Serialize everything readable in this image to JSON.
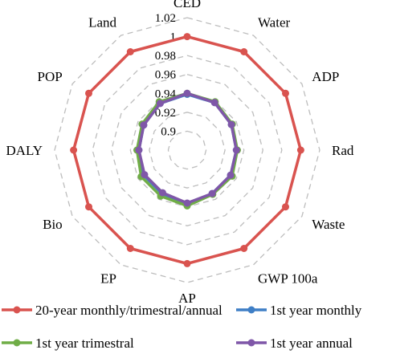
{
  "chart_data": {
    "type": "radar",
    "axes": [
      "CED",
      "Water",
      "ADP",
      "Rad",
      "Waste",
      "GWP 100a",
      "AP",
      "EP",
      "Bio",
      "DALY",
      "POP",
      "Land"
    ],
    "rlim": [
      0.88,
      1.02
    ],
    "ticks": [
      0.88,
      0.9,
      0.92,
      0.94,
      0.96,
      0.98,
      1,
      1.02
    ],
    "tick_labels": [
      "",
      "0.9",
      "0.92",
      "0.94",
      "0.96",
      "0.98",
      "1",
      "1.02"
    ],
    "grid": true,
    "legend_position": "bottom",
    "series": [
      {
        "name": "20-year monthly/trimestral/annual",
        "color": "#d9534f",
        "values": [
          1,
          1,
          1,
          1,
          1,
          1,
          1,
          1,
          1,
          1,
          1,
          1
        ]
      },
      {
        "name": "1st year monthly",
        "color": "#3f7fc6",
        "values": [
          0.939,
          0.938,
          0.934,
          0.932,
          0.933,
          0.933,
          0.937,
          0.933,
          0.933,
          0.931,
          0.933,
          0.937
        ]
      },
      {
        "name": "1st year trimestral",
        "color": "#70ad47",
        "values": [
          0.94,
          0.939,
          0.935,
          0.933,
          0.935,
          0.934,
          0.939,
          0.936,
          0.936,
          0.933,
          0.935,
          0.939
        ]
      },
      {
        "name": "1st year annual",
        "color": "#7f57a8",
        "values": [
          0.94,
          0.938,
          0.934,
          0.932,
          0.933,
          0.933,
          0.936,
          0.932,
          0.932,
          0.931,
          0.933,
          0.937
        ]
      }
    ]
  }
}
